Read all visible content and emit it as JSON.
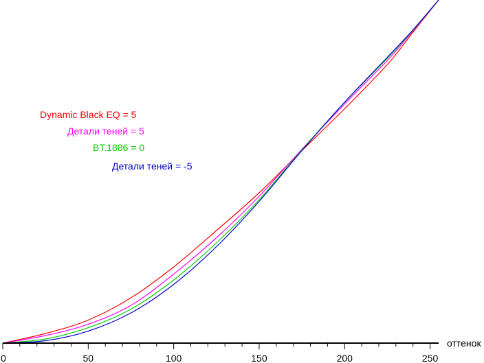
{
  "chart_data": {
    "type": "line",
    "xlabel": "оттенок",
    "ylabel": "",
    "title": "",
    "xlim": [
      0,
      255
    ],
    "ylim": [
      0,
      1
    ],
    "xticks": [
      0,
      50,
      100,
      150,
      200,
      250
    ],
    "grid": false,
    "legend_placement": "upper-left, staggered",
    "x": [
      0,
      25,
      50,
      75,
      100,
      125,
      150,
      175,
      200,
      225,
      240,
      255
    ],
    "series": [
      {
        "name": "Dynamic Black EQ = 5",
        "color": "#ff0000",
        "values": [
          0.0,
          0.028,
          0.067,
          0.132,
          0.222,
          0.328,
          0.438,
          0.561,
          0.683,
          0.812,
          0.906,
          1.0
        ]
      },
      {
        "name": "Детали теней = 5",
        "color": "#ff00ff",
        "values": [
          0.0,
          0.022,
          0.055,
          0.11,
          0.201,
          0.307,
          0.428,
          0.565,
          0.697,
          0.824,
          0.91,
          1.0
        ]
      },
      {
        "name": "BT.1886 = 0",
        "color": "#00cc00",
        "values": [
          0.0,
          0.012,
          0.045,
          0.099,
          0.184,
          0.292,
          0.418,
          0.563,
          0.702,
          0.83,
          0.912,
          1.0
        ]
      },
      {
        "name": "Детали теней = -5",
        "color": "#0000cc",
        "values": [
          0.0,
          0.007,
          0.035,
          0.088,
          0.171,
          0.281,
          0.413,
          0.561,
          0.702,
          0.833,
          0.913,
          1.0
        ]
      }
    ]
  }
}
